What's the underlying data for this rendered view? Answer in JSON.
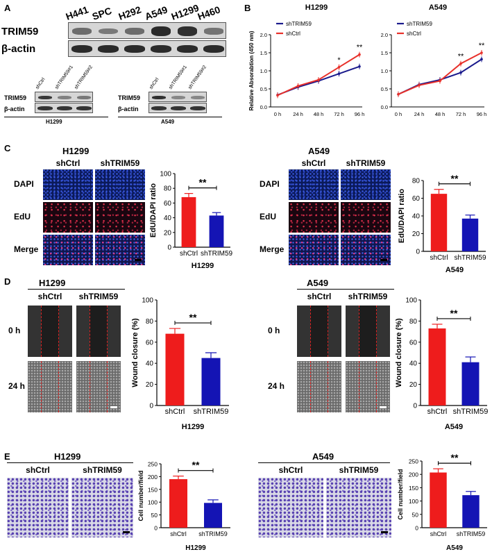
{
  "panelA": {
    "label": "A",
    "cell_lines": [
      "H441",
      "SPC",
      "H292",
      "A549",
      "H1299",
      "H460"
    ],
    "row_labels": [
      "TRIM59",
      "β-actin"
    ],
    "trim59_intensity": [
      0.45,
      0.35,
      0.45,
      0.95,
      0.9,
      0.4
    ],
    "small_blots": [
      {
        "title": "H1299",
        "lanes": [
          "shCtrl",
          "shTRIM59#1",
          "shTRIM59#2"
        ],
        "rows": [
          "TRIM59",
          "β-actin"
        ],
        "trim59_intensity": [
          0.85,
          0.35,
          0.4
        ]
      },
      {
        "title": "A549",
        "lanes": [
          "shCtrl",
          "shTRIM59#1",
          "shTRIM59#2"
        ],
        "rows": [
          "TRIM59",
          "β-actin"
        ],
        "trim59_intensity": [
          0.9,
          0.3,
          0.3
        ]
      }
    ]
  },
  "panelB": {
    "label": "B",
    "chart_data": [
      {
        "type": "line",
        "title": "H1299",
        "ylabel": "Relative Absorabtion (450 nm)",
        "categories": [
          "0 h",
          "24 h",
          "48 h",
          "72 h",
          "96 h"
        ],
        "ylim": [
          0,
          2.0
        ],
        "yticks": [
          "0.0",
          "0.5",
          "1.0",
          "1.5",
          "2.0"
        ],
        "series": [
          {
            "name": "shTRIM59",
            "color": "#1a1a8c",
            "values": [
              0.33,
              0.55,
              0.72,
              0.92,
              1.12
            ]
          },
          {
            "name": "shCtrl",
            "color": "#e8302a",
            "values": [
              0.32,
              0.58,
              0.75,
              1.1,
              1.45
            ]
          }
        ],
        "annotations": [
          {
            "category": "72 h",
            "text": "*"
          },
          {
            "category": "96 h",
            "text": "**"
          }
        ]
      },
      {
        "type": "line",
        "title": "A549",
        "ylabel": "",
        "categories": [
          "0 h",
          "24 h",
          "48 h",
          "72 h",
          "96 h"
        ],
        "ylim": [
          0,
          2.0
        ],
        "yticks": [
          "0.0",
          "0.5",
          "1.0",
          "1.5",
          "2.0"
        ],
        "series": [
          {
            "name": "shTRIM59",
            "color": "#1a1a8c",
            "values": [
              0.35,
              0.62,
              0.75,
              0.95,
              1.32
            ]
          },
          {
            "name": "shCtrl",
            "color": "#e8302a",
            "values": [
              0.35,
              0.6,
              0.72,
              1.2,
              1.5
            ]
          }
        ],
        "annotations": [
          {
            "category": "72 h",
            "text": "**"
          },
          {
            "category": "96 h",
            "text": "**"
          }
        ]
      }
    ]
  },
  "panelC": {
    "label": "C",
    "groups": [
      {
        "title": "H1299",
        "cols": [
          "shCtrl",
          "shTRIM59"
        ],
        "rows": [
          "DAPI",
          "EdU",
          "Merge"
        ]
      },
      {
        "title": "A549",
        "cols": [
          "shCtrl",
          "shTRIM59"
        ],
        "rows": [
          "DAPI",
          "EdU",
          "Merge"
        ]
      }
    ],
    "chart_data": [
      {
        "type": "bar",
        "title": "",
        "xlabel": "H1299",
        "ylabel": "EdU/DAPI ratio",
        "categories": [
          "shCtrl",
          "shTRIM59"
        ],
        "values": [
          68,
          43
        ],
        "errors": [
          5,
          4
        ],
        "ylim": [
          0,
          100
        ],
        "yticks": [
          "0",
          "20",
          "40",
          "60",
          "80",
          "100"
        ],
        "colors": [
          "#ee1c1c",
          "#1414b4"
        ],
        "significance": "**"
      },
      {
        "type": "bar",
        "title": "",
        "xlabel": "A549",
        "ylabel": "EdU/DAPI ratio",
        "categories": [
          "shCtrl",
          "shTRIM59"
        ],
        "values": [
          65,
          37
        ],
        "errors": [
          5,
          4
        ],
        "ylim": [
          0,
          80
        ],
        "yticks": [
          "0",
          "20",
          "40",
          "60",
          "80"
        ],
        "colors": [
          "#ee1c1c",
          "#1414b4"
        ],
        "significance": "**"
      }
    ]
  },
  "panelD": {
    "label": "D",
    "groups": [
      {
        "title": "H1299",
        "cols": [
          "shCtrl",
          "shTRIM59"
        ],
        "rows": [
          "0 h",
          "24 h"
        ]
      },
      {
        "title": "A549",
        "cols": [
          "shCtrl",
          "shTRIM59"
        ],
        "rows": [
          "0 h",
          "24 h"
        ]
      }
    ],
    "chart_data": [
      {
        "type": "bar",
        "title": "",
        "xlabel": "H1299",
        "ylabel": "Wound closure (%)",
        "categories": [
          "shCtrl",
          "shTRIM59"
        ],
        "values": [
          68,
          45
        ],
        "errors": [
          5,
          5
        ],
        "ylim": [
          0,
          100
        ],
        "yticks": [
          "0",
          "20",
          "40",
          "60",
          "80",
          "100"
        ],
        "colors": [
          "#ee1c1c",
          "#1414b4"
        ],
        "significance": "**"
      },
      {
        "type": "bar",
        "title": "",
        "xlabel": "A549",
        "ylabel": "Wound closure (%)",
        "categories": [
          "shCtrl",
          "shTRIM59"
        ],
        "values": [
          73,
          41
        ],
        "errors": [
          4,
          5
        ],
        "ylim": [
          0,
          100
        ],
        "yticks": [
          "0",
          "20",
          "40",
          "60",
          "80",
          "100"
        ],
        "colors": [
          "#ee1c1c",
          "#1414b4"
        ],
        "significance": "**"
      }
    ]
  },
  "panelE": {
    "label": "E",
    "groups": [
      {
        "title": "H1299",
        "cols": [
          "shCtrl",
          "shTRIM59"
        ]
      },
      {
        "title": "A549",
        "cols": [
          "shCtrl",
          "shTRIM59"
        ]
      }
    ],
    "chart_data": [
      {
        "type": "bar",
        "title": "",
        "xlabel": "H1299",
        "ylabel": "Cell number/field",
        "categories": [
          "shCtrl",
          "shTRIM59"
        ],
        "values": [
          190,
          97
        ],
        "errors": [
          12,
          12
        ],
        "ylim": [
          0,
          250
        ],
        "yticks": [
          "0",
          "50",
          "100",
          "150",
          "200",
          "250"
        ],
        "colors": [
          "#ee1c1c",
          "#1414b4"
        ],
        "significance": "**"
      },
      {
        "type": "bar",
        "title": "",
        "xlabel": "A549",
        "ylabel": "Cell number/field",
        "categories": [
          "shCtrl",
          "shTRIM59"
        ],
        "values": [
          207,
          122
        ],
        "errors": [
          14,
          14
        ],
        "ylim": [
          0,
          250
        ],
        "yticks": [
          "0",
          "50",
          "100",
          "150",
          "200",
          "250"
        ],
        "colors": [
          "#ee1c1c",
          "#1414b4"
        ],
        "significance": "**"
      }
    ]
  }
}
